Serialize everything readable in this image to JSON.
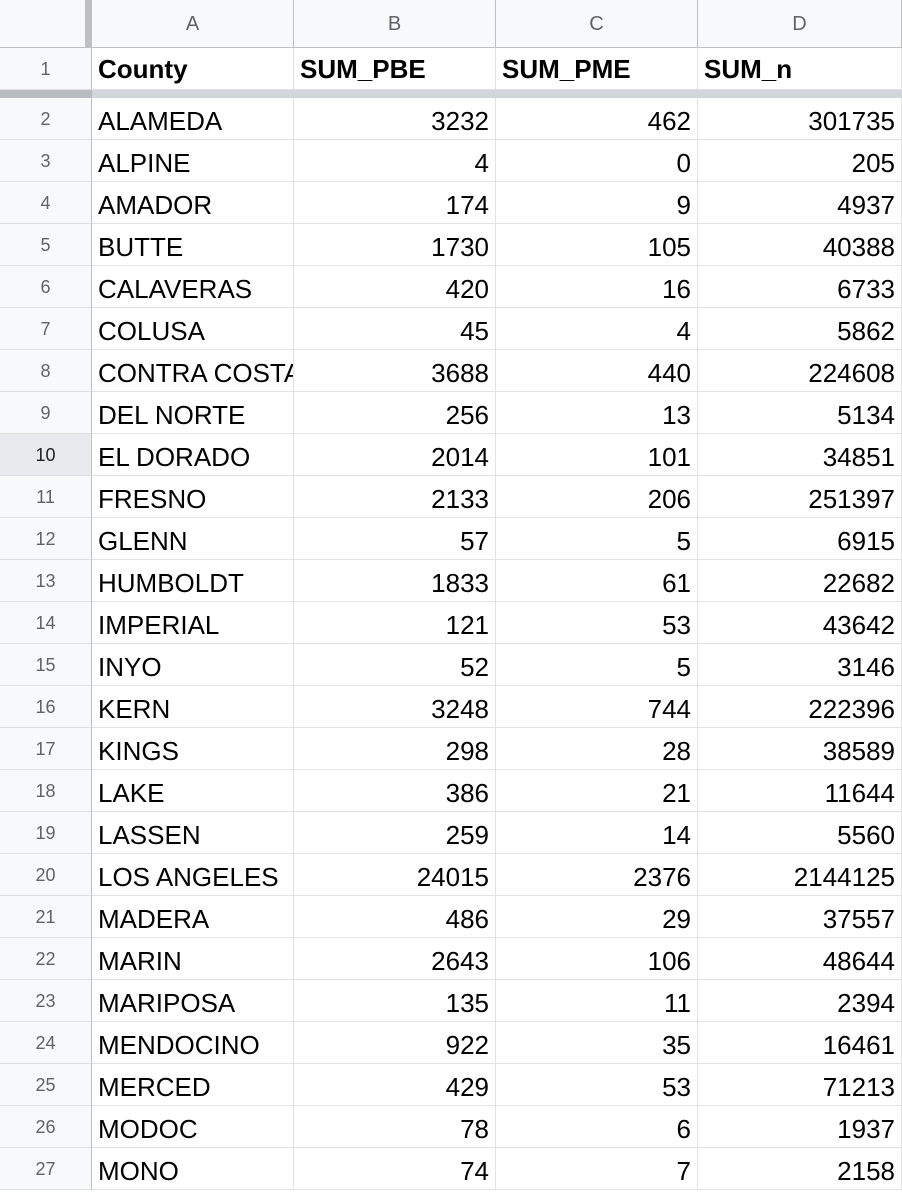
{
  "sheet": {
    "columns": [
      "A",
      "B",
      "C",
      "D"
    ],
    "header_row": {
      "number": "1",
      "cells": [
        "County",
        "SUM_PBE",
        "SUM_PME",
        "SUM_n"
      ]
    },
    "rows": [
      {
        "number": "2",
        "cells": [
          "ALAMEDA",
          "3232",
          "462",
          "301735"
        ]
      },
      {
        "number": "3",
        "cells": [
          "ALPINE",
          "4",
          "0",
          "205"
        ]
      },
      {
        "number": "4",
        "cells": [
          "AMADOR",
          "174",
          "9",
          "4937"
        ]
      },
      {
        "number": "5",
        "cells": [
          "BUTTE",
          "1730",
          "105",
          "40388"
        ]
      },
      {
        "number": "6",
        "cells": [
          "CALAVERAS",
          "420",
          "16",
          "6733"
        ]
      },
      {
        "number": "7",
        "cells": [
          "COLUSA",
          "45",
          "4",
          "5862"
        ]
      },
      {
        "number": "8",
        "cells": [
          "CONTRA COSTA",
          "3688",
          "440",
          "224608"
        ]
      },
      {
        "number": "9",
        "cells": [
          "DEL NORTE",
          "256",
          "13",
          "5134"
        ]
      },
      {
        "number": "10",
        "cells": [
          "EL DORADO",
          "2014",
          "101",
          "34851"
        ]
      },
      {
        "number": "11",
        "cells": [
          "FRESNO",
          "2133",
          "206",
          "251397"
        ]
      },
      {
        "number": "12",
        "cells": [
          "GLENN",
          "57",
          "5",
          "6915"
        ]
      },
      {
        "number": "13",
        "cells": [
          "HUMBOLDT",
          "1833",
          "61",
          "22682"
        ]
      },
      {
        "number": "14",
        "cells": [
          "IMPERIAL",
          "121",
          "53",
          "43642"
        ]
      },
      {
        "number": "15",
        "cells": [
          "INYO",
          "52",
          "5",
          "3146"
        ]
      },
      {
        "number": "16",
        "cells": [
          "KERN",
          "3248",
          "744",
          "222396"
        ]
      },
      {
        "number": "17",
        "cells": [
          "KINGS",
          "298",
          "28",
          "38589"
        ]
      },
      {
        "number": "18",
        "cells": [
          "LAKE",
          "386",
          "21",
          "11644"
        ]
      },
      {
        "number": "19",
        "cells": [
          "LASSEN",
          "259",
          "14",
          "5560"
        ]
      },
      {
        "number": "20",
        "cells": [
          "LOS ANGELES",
          "24015",
          "2376",
          "2144125"
        ]
      },
      {
        "number": "21",
        "cells": [
          "MADERA",
          "486",
          "29",
          "37557"
        ]
      },
      {
        "number": "22",
        "cells": [
          "MARIN",
          "2643",
          "106",
          "48644"
        ]
      },
      {
        "number": "23",
        "cells": [
          "MARIPOSA",
          "135",
          "11",
          "2394"
        ]
      },
      {
        "number": "24",
        "cells": [
          "MENDOCINO",
          "922",
          "35",
          "16461"
        ]
      },
      {
        "number": "25",
        "cells": [
          "MERCED",
          "429",
          "53",
          "71213"
        ]
      },
      {
        "number": "26",
        "cells": [
          "MODOC",
          "78",
          "6",
          "1937"
        ]
      },
      {
        "number": "27",
        "cells": [
          "MONO",
          "74",
          "7",
          "2158"
        ]
      }
    ],
    "active_row": "10"
  }
}
